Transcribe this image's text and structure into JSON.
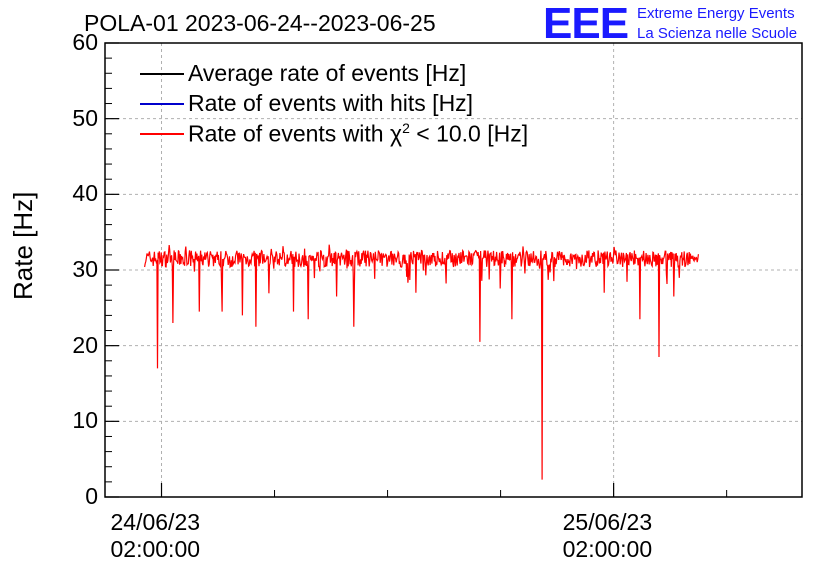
{
  "title": "POLA-01 2023-06-24--2023-06-25",
  "logo": {
    "text": "EEE",
    "line1": "Extreme Energy Events",
    "line2": "La Scienza nelle Scuole"
  },
  "chart_data": {
    "type": "line",
    "ylabel": "Rate [Hz]",
    "ylim": [
      0,
      60
    ],
    "yticks": [
      "0",
      "10",
      "20",
      "30",
      "40",
      "50",
      "60"
    ],
    "x_tick_labels": [
      {
        "date": "24/06/23",
        "time": "02:00:00"
      },
      {
        "date": "25/06/23",
        "time": "02:00:00"
      }
    ],
    "xlim_hours": [
      -3,
      34
    ],
    "data_x_range_hours": [
      -0.9,
      28.5
    ],
    "grid": true,
    "legend_position": "top-left",
    "series": [
      {
        "name": "Average rate of events [Hz]",
        "color": "#000000",
        "legend_label": "Average rate of events [Hz]"
      },
      {
        "name": "Rate of events with hits [Hz]",
        "color": "#0000cc",
        "legend_label": "Rate of events with hits [Hz]"
      },
      {
        "name": "Rate of events with chi2 < 10.0 [Hz]",
        "color": "#ff0000",
        "legend_prefix": "Rate of events with ",
        "legend_chi": "χ",
        "legend_sup": "2",
        "legend_suffix": " < 10.0 [Hz]"
      }
    ],
    "baseline_value": 31.5,
    "noise_amplitude": 1.1,
    "dips": [
      {
        "x": -0.2,
        "y": 17.0
      },
      {
        "x": 0.6,
        "y": 23.0
      },
      {
        "x": 2.0,
        "y": 24.5
      },
      {
        "x": 3.2,
        "y": 24.5
      },
      {
        "x": 4.3,
        "y": 24.0
      },
      {
        "x": 5.0,
        "y": 22.5
      },
      {
        "x": 7.0,
        "y": 24.5
      },
      {
        "x": 7.8,
        "y": 23.5
      },
      {
        "x": 9.3,
        "y": 26.5
      },
      {
        "x": 10.2,
        "y": 22.5
      },
      {
        "x": 13.5,
        "y": 27.0
      },
      {
        "x": 16.9,
        "y": 20.5
      },
      {
        "x": 18.6,
        "y": 23.5
      },
      {
        "x": 20.2,
        "y": 2.3
      },
      {
        "x": 23.5,
        "y": 27.0
      },
      {
        "x": 25.4,
        "y": 23.5
      },
      {
        "x": 26.4,
        "y": 18.5
      },
      {
        "x": 27.2,
        "y": 26.5
      }
    ]
  }
}
